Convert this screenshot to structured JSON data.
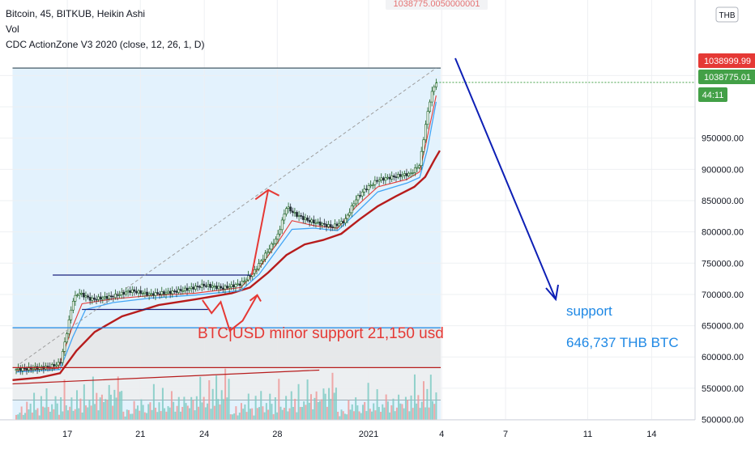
{
  "header": {
    "title": "Bitcoin, 45, BITKUB, Heikin Ashi",
    "vol_label": "Vol",
    "indicator": "CDC ActionZone V3 2020 (close, 12, 26, 1, D)",
    "currency_badge": "THB",
    "crosshair_price": "1038775.0050000001"
  },
  "price_tags": [
    {
      "text": "1038999.99",
      "color": "#e53935"
    },
    {
      "text": "1038775.01",
      "color": "#43a047"
    },
    {
      "text": "44:11",
      "color": "#43a047"
    }
  ],
  "annotations": {
    "support_note": "BTC|USD minor support 21,150 usd",
    "support_title": "support",
    "support_value": "646,737 THB BTC"
  },
  "colors": {
    "candle_up": "#1b5e20",
    "candle_down": "#263238",
    "ema_fast": "#e53935",
    "ema_slow": "#42a5f5",
    "ma_long": "#b71c1c",
    "highlight": "#e3f2fd",
    "note_red": "#e53935",
    "arrow_blue": "#0d1fb5",
    "support_text": "#1e88e5"
  },
  "chart_data": {
    "type": "line",
    "title": "Bitcoin, 45, BITKUB, Heikin Ashi",
    "ylim": [
      480000,
      1110000
    ],
    "y_ticks": [
      500000,
      550000,
      600000,
      650000,
      700000,
      750000,
      800000,
      850000,
      900000,
      950000,
      1000000,
      1050000
    ],
    "y_tick_labels": [
      "500000.00",
      "550000.00",
      "600000.00",
      "650000.00",
      "700000.00",
      "750000.00",
      "800000.00",
      "850000.00",
      "900000.00",
      "950000.00",
      "",
      ""
    ],
    "x_ticks": [
      {
        "t": 3,
        "label": "17"
      },
      {
        "t": 7,
        "label": "21"
      },
      {
        "t": 10.5,
        "label": "24"
      },
      {
        "t": 14.5,
        "label": "28"
      },
      {
        "t": 19.5,
        "label": "2021"
      },
      {
        "t": 23.5,
        "label": "4"
      },
      {
        "t": 27,
        "label": "7"
      },
      {
        "t": 31.5,
        "label": "11"
      },
      {
        "t": 35,
        "label": "14"
      }
    ],
    "price_series": {
      "name": "",
      "points": [
        [
          0.2,
          580000
        ],
        [
          2.0,
          584000
        ],
        [
          2.6,
          590000
        ],
        [
          2.9,
          628000
        ],
        [
          3.3,
          690000
        ],
        [
          3.6,
          703000
        ],
        [
          4.3,
          692000
        ],
        [
          5.5,
          697000
        ],
        [
          6.5,
          706000
        ],
        [
          7.5,
          700000
        ],
        [
          8.5,
          703000
        ],
        [
          9.5,
          708000
        ],
        [
          10.5,
          715000
        ],
        [
          11.5,
          710000
        ],
        [
          12.5,
          717000
        ],
        [
          13.2,
          735000
        ],
        [
          13.8,
          762000
        ],
        [
          14.5,
          792000
        ],
        [
          15.0,
          840000
        ],
        [
          15.5,
          828000
        ],
        [
          16.2,
          818000
        ],
        [
          17.0,
          812000
        ],
        [
          17.5,
          808000
        ],
        [
          18.2,
          818000
        ],
        [
          18.8,
          852000
        ],
        [
          19.3,
          868000
        ],
        [
          20.0,
          883000
        ],
        [
          21.0,
          889000
        ],
        [
          21.8,
          893000
        ],
        [
          22.3,
          908000
        ],
        [
          22.6,
          968000
        ],
        [
          22.9,
          1018000
        ],
        [
          23.2,
          1040000
        ]
      ]
    },
    "ema_fast_series": {
      "name": "",
      "points": [
        [
          0.2,
          578000
        ],
        [
          2.5,
          582000
        ],
        [
          3.2,
          642000
        ],
        [
          3.8,
          685000
        ],
        [
          5.5,
          693000
        ],
        [
          7.5,
          698000
        ],
        [
          10.0,
          702000
        ],
        [
          12.5,
          711000
        ],
        [
          13.5,
          742000
        ],
        [
          14.5,
          782000
        ],
        [
          15.3,
          818000
        ],
        [
          16.5,
          810000
        ],
        [
          17.8,
          806000
        ],
        [
          18.8,
          840000
        ],
        [
          20.0,
          872000
        ],
        [
          21.6,
          884000
        ],
        [
          22.3,
          896000
        ],
        [
          22.7,
          950000
        ],
        [
          23.2,
          1018000
        ]
      ]
    },
    "ema_slow_series": {
      "name": "",
      "points": [
        [
          0.2,
          576000
        ],
        [
          2.6,
          580000
        ],
        [
          3.3,
          632000
        ],
        [
          4.0,
          676000
        ],
        [
          5.5,
          687000
        ],
        [
          7.5,
          694000
        ],
        [
          10.0,
          699000
        ],
        [
          12.5,
          706000
        ],
        [
          13.5,
          732000
        ],
        [
          14.5,
          772000
        ],
        [
          15.3,
          804000
        ],
        [
          16.5,
          806000
        ],
        [
          17.8,
          802000
        ],
        [
          18.8,
          830000
        ],
        [
          20.0,
          864000
        ],
        [
          21.6,
          878000
        ],
        [
          22.3,
          887000
        ],
        [
          22.7,
          930000
        ],
        [
          23.2,
          1008000
        ]
      ]
    },
    "ma_long_series": {
      "name": "",
      "points": [
        [
          0.0,
          563000
        ],
        [
          1.5,
          567000
        ],
        [
          2.6,
          574000
        ],
        [
          3.5,
          610000
        ],
        [
          4.5,
          640000
        ],
        [
          6.0,
          665000
        ],
        [
          8.0,
          683000
        ],
        [
          10.0,
          692000
        ],
        [
          12.0,
          702000
        ],
        [
          13.0,
          711000
        ],
        [
          14.0,
          735000
        ],
        [
          15.0,
          763000
        ],
        [
          16.0,
          780000
        ],
        [
          17.0,
          787000
        ],
        [
          18.0,
          797000
        ],
        [
          19.0,
          820000
        ],
        [
          20.0,
          841000
        ],
        [
          21.0,
          857000
        ],
        [
          22.0,
          872000
        ],
        [
          22.6,
          888000
        ],
        [
          23.1,
          915000
        ],
        [
          23.4,
          930000
        ]
      ]
    },
    "volume": {
      "scale_max": 100,
      "samples": [
        12,
        8,
        15,
        20,
        9,
        11,
        30,
        18,
        25,
        14,
        40,
        22,
        17,
        10,
        35,
        26,
        19,
        55,
        21,
        13,
        28,
        16,
        48,
        24,
        12,
        33,
        18,
        60,
        27,
        15,
        22,
        38,
        14,
        20,
        44,
        25,
        31,
        17,
        52,
        29,
        19,
        36,
        23,
        70,
        28,
        41,
        19,
        33,
        58,
        26,
        45,
        30,
        66,
        39,
        24,
        50,
        35,
        80,
        42,
        61
      ]
    },
    "highlight_range": {
      "t_start": 0,
      "t_end": 23.45,
      "y_top": 1062000
    },
    "horizontal_lines": [
      {
        "y": 731000,
        "t_start": 2.2,
        "t_end": 13.0,
        "color": "#1a237e"
      },
      {
        "y": 676000,
        "t_start": 3.8,
        "t_end": 10.7,
        "color": "#1a237e"
      },
      {
        "y": 646737,
        "t_start": 0,
        "t_end": 23.45,
        "color": "#1e88e5"
      },
      {
        "y": 583000,
        "t_start": 0,
        "t_end": 23.45,
        "color": "#b71c1c"
      },
      {
        "y": 1062000,
        "t_start": 0,
        "t_end": 23.45,
        "color": "#455a64"
      }
    ],
    "gray_zone": [
      646737,
      583000
    ],
    "diagonal_line": {
      "start": [
        0.4,
        589000
      ],
      "end": [
        23.2,
        1062000
      ]
    },
    "trend_line": {
      "start": [
        0,
        557000
      ],
      "end": [
        16.8,
        579000
      ]
    },
    "current_price": 1038999.99
  }
}
